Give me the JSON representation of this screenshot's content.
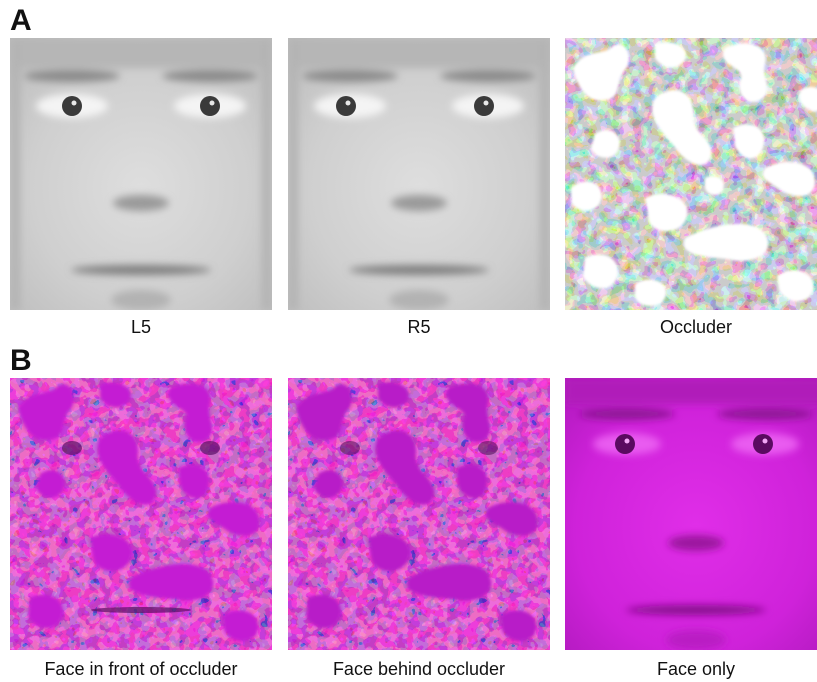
{
  "panels": {
    "a": {
      "letter": "A",
      "items": [
        {
          "caption": "L5"
        },
        {
          "caption": "R5"
        },
        {
          "caption": "Occluder"
        }
      ]
    },
    "b": {
      "letter": "B",
      "items": [
        {
          "caption": "Face in front of occluder"
        },
        {
          "caption": "Face behind occluder"
        },
        {
          "caption": "Face only"
        }
      ]
    }
  },
  "colors": {
    "grayscale_face": "#c9c9c9",
    "magenta": "#c81ed6",
    "occluder_white": "#ffffff",
    "occluder_dark": "#2a2a2a",
    "noise_blue": "#3a2aa0",
    "noise_red": "#d01840"
  }
}
